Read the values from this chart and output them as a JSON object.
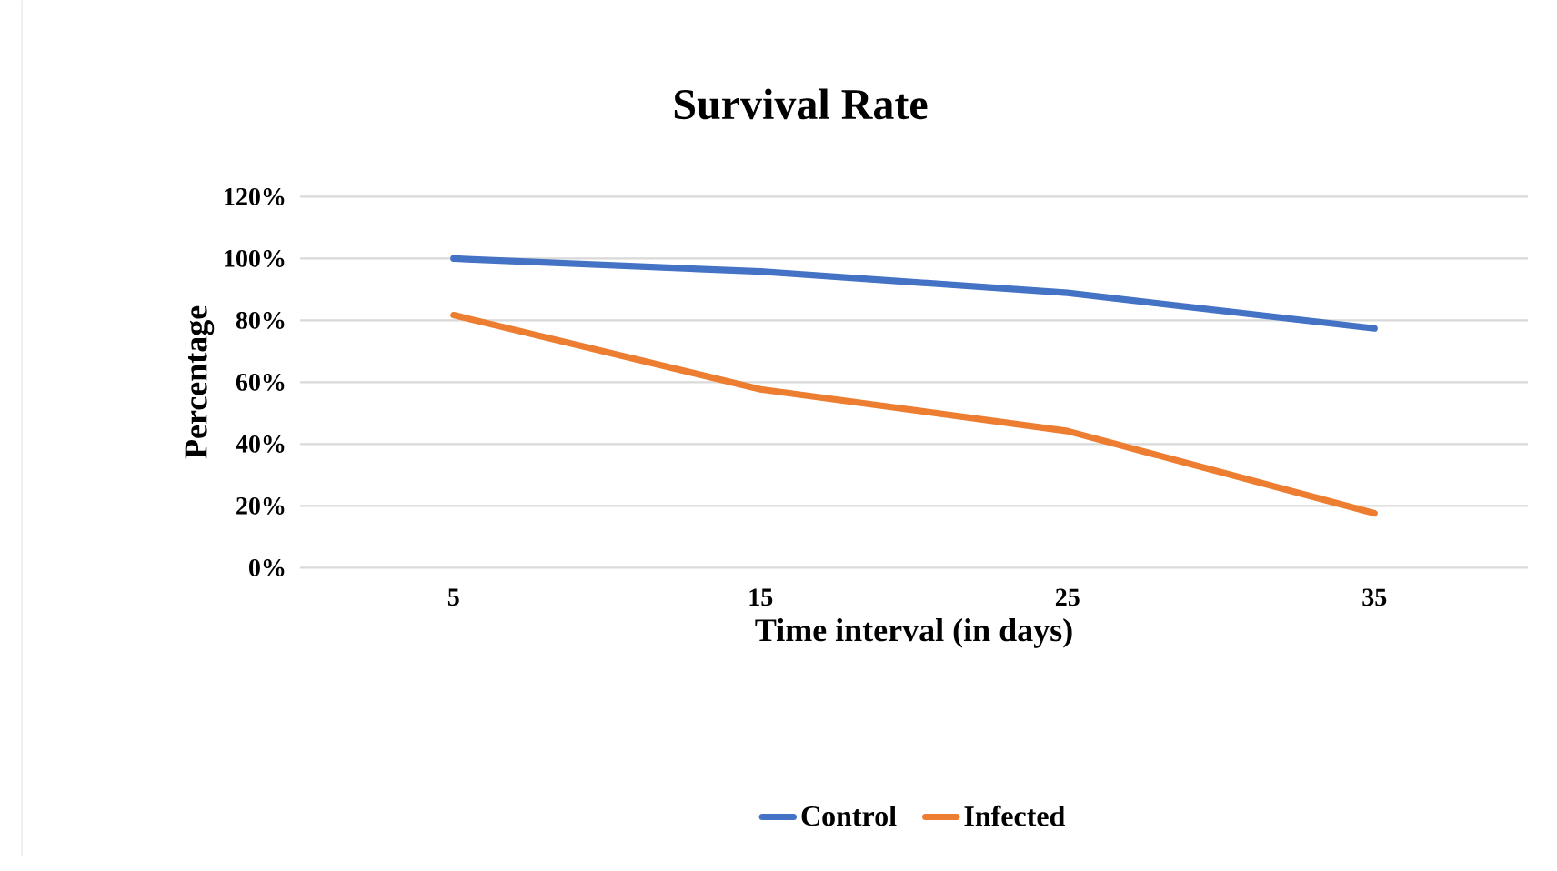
{
  "chart_data": {
    "type": "line",
    "title": "Survival Rate",
    "xlabel": "Time interval (in days)",
    "ylabel": "Percentage",
    "categories": [
      "5",
      "15",
      "25",
      "35"
    ],
    "series": [
      {
        "name": "Control",
        "color": "#4472c4",
        "values": [
          100,
          95.8,
          88.9,
          77.4
        ]
      },
      {
        "name": "Infected",
        "color": "#ed7d31",
        "values": [
          81.7,
          57.7,
          44.2,
          17.6
        ]
      }
    ],
    "ylim": [
      0,
      120
    ],
    "yticks": [
      {
        "value": 0,
        "label": "0%"
      },
      {
        "value": 20,
        "label": "20%"
      },
      {
        "value": 40,
        "label": "40%"
      },
      {
        "value": 60,
        "label": "60%"
      },
      {
        "value": 80,
        "label": "80%"
      },
      {
        "value": 100,
        "label": "100%"
      },
      {
        "value": 120,
        "label": "120%"
      }
    ],
    "grid": "y",
    "legend": "bottom"
  }
}
